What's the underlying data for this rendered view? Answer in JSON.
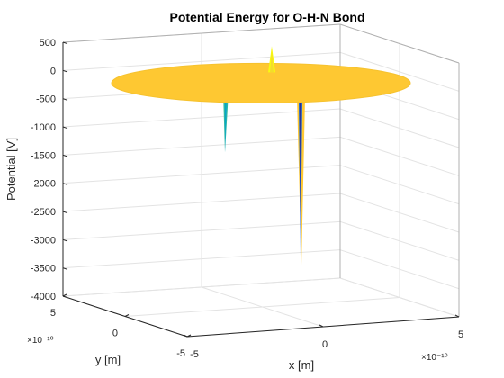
{
  "chart_data": {
    "type": "surface3d",
    "title": "Potential Energy for O-H-N Bond",
    "zlabel": "Potential [V]",
    "xlabel": "x [m]",
    "ylabel": "y [m]",
    "zlim": [
      -4000,
      500
    ],
    "z_ticks": [
      500,
      0,
      -500,
      -1000,
      -1500,
      -2000,
      -2500,
      -3000,
      -3500,
      -4000
    ],
    "x_ticks": [
      "-5",
      "0",
      "5"
    ],
    "y_ticks": [
      "-5",
      "0",
      "5"
    ],
    "x_exponent": "×10⁻¹⁰",
    "y_exponent": "×10⁻¹⁰",
    "grid": true,
    "surface_level": 0,
    "features": [
      {
        "type": "spike",
        "z": 430
      },
      {
        "type": "spike",
        "z": -1450
      },
      {
        "type": "spike",
        "z": -3450
      }
    ],
    "colormap": [
      "#352a87",
      "#0f5cdd",
      "#1481d6",
      "#06a4ca",
      "#2eb7a4",
      "#87bf77",
      "#d1bb59",
      "#fec832",
      "#f9fb0e"
    ]
  }
}
